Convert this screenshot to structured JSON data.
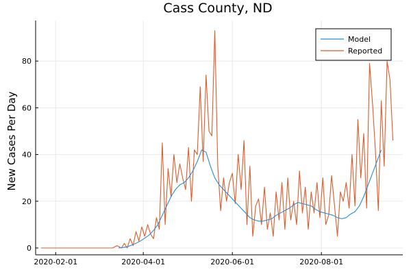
{
  "chart_data": {
    "type": "line",
    "title": "Cass County, ND",
    "xlabel": "",
    "ylabel": "New Cases Per Day",
    "x_axis": {
      "type": "date",
      "range": [
        "2020-01-22",
        "2020-09-22"
      ],
      "ticks": [
        "2020-02-01",
        "2020-04-01",
        "2020-06-01",
        "2020-08-01"
      ]
    },
    "y_axis": {
      "range": [
        0,
        95
      ],
      "ticks": [
        0,
        20,
        40,
        60,
        80
      ]
    },
    "grid": true,
    "legend_position": "top-right",
    "series": [
      {
        "name": "Model",
        "color": "#1f8fd6",
        "x": [
          "2020-03-15",
          "2020-03-18",
          "2020-03-21",
          "2020-03-24",
          "2020-03-27",
          "2020-03-30",
          "2020-04-02",
          "2020-04-05",
          "2020-04-08",
          "2020-04-11",
          "2020-04-14",
          "2020-04-17",
          "2020-04-20",
          "2020-04-23",
          "2020-04-26",
          "2020-04-29",
          "2020-05-02",
          "2020-05-05",
          "2020-05-08",
          "2020-05-11",
          "2020-05-14",
          "2020-05-17",
          "2020-05-20",
          "2020-05-23",
          "2020-05-26",
          "2020-05-29",
          "2020-06-01",
          "2020-06-04",
          "2020-06-07",
          "2020-06-10",
          "2020-06-13",
          "2020-06-16",
          "2020-06-19",
          "2020-06-22",
          "2020-06-25",
          "2020-06-28",
          "2020-07-01",
          "2020-07-04",
          "2020-07-07",
          "2020-07-10",
          "2020-07-13",
          "2020-07-16",
          "2020-07-19",
          "2020-07-22",
          "2020-07-25",
          "2020-07-28",
          "2020-07-31",
          "2020-08-03",
          "2020-08-06",
          "2020-08-09",
          "2020-08-12",
          "2020-08-15",
          "2020-08-18",
          "2020-08-21",
          "2020-08-24",
          "2020-08-27",
          "2020-08-30",
          "2020-09-02",
          "2020-09-05",
          "2020-09-08",
          "2020-09-11"
        ],
        "y": [
          0,
          0.2,
          0.5,
          1.2,
          2,
          3,
          4.2,
          5.5,
          7.5,
          10,
          14,
          18,
          22,
          25,
          27,
          28,
          30,
          33,
          37,
          42,
          41,
          35,
          30,
          27,
          25,
          23,
          21,
          19,
          17,
          15,
          13,
          12,
          11.5,
          11.5,
          12,
          12.5,
          14,
          15,
          16,
          17,
          18.5,
          19.5,
          19,
          18.5,
          18,
          16.5,
          15.5,
          15,
          14.5,
          14,
          13,
          12.5,
          13,
          14.5,
          15.5,
          18,
          22,
          27,
          32,
          37,
          42
        ]
      },
      {
        "name": "Reported",
        "color": "#e05a28",
        "x": [
          "2020-01-22",
          "2020-03-11",
          "2020-03-14",
          "2020-03-17",
          "2020-03-19",
          "2020-03-21",
          "2020-03-23",
          "2020-03-25",
          "2020-03-27",
          "2020-03-29",
          "2020-03-31",
          "2020-04-02",
          "2020-04-04",
          "2020-04-06",
          "2020-04-08",
          "2020-04-10",
          "2020-04-12",
          "2020-04-14",
          "2020-04-16",
          "2020-04-18",
          "2020-04-20",
          "2020-04-22",
          "2020-04-24",
          "2020-04-26",
          "2020-04-28",
          "2020-04-30",
          "2020-05-02",
          "2020-05-04",
          "2020-05-06",
          "2020-05-08",
          "2020-05-10",
          "2020-05-12",
          "2020-05-14",
          "2020-05-16",
          "2020-05-18",
          "2020-05-20",
          "2020-05-22",
          "2020-05-24",
          "2020-05-26",
          "2020-05-28",
          "2020-05-30",
          "2020-06-01",
          "2020-06-03",
          "2020-06-05",
          "2020-06-07",
          "2020-06-09",
          "2020-06-11",
          "2020-06-13",
          "2020-06-15",
          "2020-06-17",
          "2020-06-19",
          "2020-06-21",
          "2020-06-23",
          "2020-06-25",
          "2020-06-27",
          "2020-06-29",
          "2020-07-01",
          "2020-07-03",
          "2020-07-05",
          "2020-07-07",
          "2020-07-09",
          "2020-07-11",
          "2020-07-13",
          "2020-07-15",
          "2020-07-17",
          "2020-07-19",
          "2020-07-21",
          "2020-07-23",
          "2020-07-25",
          "2020-07-27",
          "2020-07-29",
          "2020-07-31",
          "2020-08-02",
          "2020-08-04",
          "2020-08-06",
          "2020-08-08",
          "2020-08-10",
          "2020-08-12",
          "2020-08-14",
          "2020-08-16",
          "2020-08-18",
          "2020-08-20",
          "2020-08-22",
          "2020-08-24",
          "2020-08-26",
          "2020-08-28",
          "2020-08-30",
          "2020-09-01",
          "2020-09-03",
          "2020-09-05",
          "2020-09-07",
          "2020-09-09",
          "2020-09-11",
          "2020-09-13",
          "2020-09-15",
          "2020-09-17",
          "2020-09-19"
        ],
        "y": [
          0,
          0,
          1,
          0,
          2,
          0,
          4,
          1,
          7,
          3,
          9,
          5,
          10,
          6,
          4,
          13,
          8,
          45,
          10,
          34,
          22,
          40,
          28,
          36,
          30,
          25,
          43,
          20,
          42,
          40,
          69,
          37,
          74,
          50,
          48,
          93,
          35,
          16,
          30,
          20,
          28,
          32,
          19,
          40,
          25,
          46,
          10,
          35,
          5,
          18,
          21,
          10,
          26,
          8,
          15,
          5,
          24,
          12,
          28,
          8,
          30,
          12,
          20,
          10,
          33,
          15,
          26,
          8,
          24,
          15,
          28,
          13,
          30,
          10,
          14,
          31,
          18,
          5,
          24,
          20,
          28,
          17,
          40,
          18,
          55,
          30,
          49,
          17,
          79,
          62,
          42,
          16,
          63,
          35,
          80,
          72,
          46
        ]
      }
    ]
  }
}
